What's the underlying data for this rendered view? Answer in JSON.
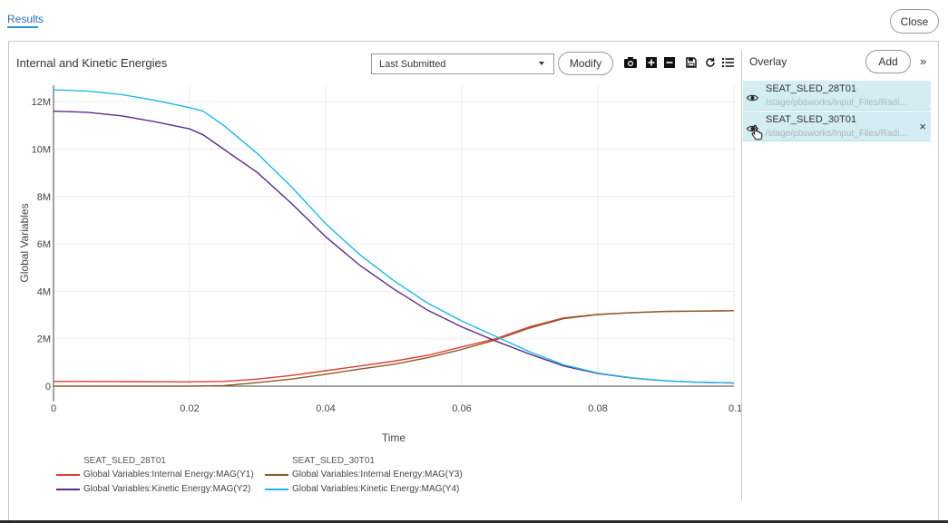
{
  "tabs": {
    "results": "Results"
  },
  "header": {
    "close_label": "Close"
  },
  "chart_header": {
    "title": "Internal and Kinetic Energies",
    "select_value": "Last Submitted",
    "modify_label": "Modify"
  },
  "toolbar": {
    "icons": [
      "camera-icon",
      "zoom-in-icon",
      "zoom-out-icon",
      "save-icon",
      "reset-icon",
      "list-icon"
    ]
  },
  "overlay": {
    "label": "Overlay",
    "add_label": "Add",
    "expand_label": "»",
    "items": [
      {
        "name": "SEAT_SLED_28T01",
        "path": "/stage/pbsworks/Input_Files/Radi..."
      },
      {
        "name": "SEAT_SLED_30T01",
        "path": "/stage/pbsworks/Input_Files/Radi...",
        "remove_label": "×"
      }
    ]
  },
  "chart_data": {
    "type": "line",
    "xlabel": "Time",
    "ylabel": "Global Variables",
    "xlim": [
      0,
      0.1
    ],
    "ylim": [
      0,
      13000000
    ],
    "x_ticks": [
      {
        "v": 0,
        "label": "0"
      },
      {
        "v": 0.02,
        "label": "0.02"
      },
      {
        "v": 0.04,
        "label": "0.04"
      },
      {
        "v": 0.06,
        "label": "0.06"
      },
      {
        "v": 0.08,
        "label": "0.08"
      },
      {
        "v": 0.1,
        "label": "0.1"
      }
    ],
    "y_ticks": [
      {
        "v": 0,
        "label": "0"
      },
      {
        "v": 2000000,
        "label": "2M"
      },
      {
        "v": 4000000,
        "label": "4M"
      },
      {
        "v": 6000000,
        "label": "6M"
      },
      {
        "v": 8000000,
        "label": "8M"
      },
      {
        "v": 10000000,
        "label": "10M"
      },
      {
        "v": 12000000,
        "label": "12M"
      }
    ],
    "grid": true,
    "legend_groups": [
      {
        "title": "SEAT_SLED_28T01",
        "series_indices": [
          0,
          1
        ]
      },
      {
        "title": "SEAT_SLED_30T01",
        "series_indices": [
          2,
          3
        ]
      }
    ],
    "series": [
      {
        "name": "Global Variables:Internal Energy:MAG(Y1)",
        "color": "#e03c31",
        "x": [
          0,
          0.01,
          0.02,
          0.025,
          0.03,
          0.035,
          0.04,
          0.045,
          0.05,
          0.055,
          0.06,
          0.065,
          0.07,
          0.075,
          0.08,
          0.085,
          0.09,
          0.1
        ],
        "y": [
          200000,
          190000,
          180000,
          200000,
          300000,
          450000,
          650000,
          850000,
          1050000,
          1300000,
          1650000,
          2000000,
          2500000,
          2880000,
          3030000,
          3100000,
          3150000,
          3180000
        ]
      },
      {
        "name": "Global Variables:Kinetic Energy:MAG(Y2)",
        "color": "#5b2a8c",
        "x": [
          0,
          0.005,
          0.01,
          0.015,
          0.02,
          0.022,
          0.025,
          0.03,
          0.035,
          0.04,
          0.045,
          0.05,
          0.055,
          0.06,
          0.065,
          0.07,
          0.075,
          0.08,
          0.085,
          0.09,
          0.095,
          0.1
        ],
        "y": [
          11600000,
          11550000,
          11400000,
          11150000,
          10850000,
          10600000,
          10000000,
          9000000,
          7700000,
          6300000,
          5100000,
          4100000,
          3200000,
          2500000,
          1900000,
          1350000,
          850000,
          530000,
          340000,
          220000,
          160000,
          130000
        ]
      },
      {
        "name": "Global Variables:Internal Energy:MAG(Y3)",
        "color": "#8b5a2b",
        "x": [
          0,
          0.01,
          0.02,
          0.025,
          0.03,
          0.035,
          0.04,
          0.045,
          0.05,
          0.055,
          0.06,
          0.065,
          0.07,
          0.075,
          0.08,
          0.085,
          0.09,
          0.1
        ],
        "y": [
          0,
          0,
          0,
          20000,
          150000,
          300000,
          500000,
          720000,
          920000,
          1200000,
          1550000,
          1950000,
          2450000,
          2850000,
          3020000,
          3100000,
          3150000,
          3180000
        ]
      },
      {
        "name": "Global Variables:Kinetic Energy:MAG(Y4)",
        "color": "#1fb8e8",
        "x": [
          0,
          0.005,
          0.01,
          0.015,
          0.02,
          0.022,
          0.025,
          0.03,
          0.035,
          0.04,
          0.045,
          0.05,
          0.055,
          0.06,
          0.065,
          0.07,
          0.075,
          0.08,
          0.085,
          0.09,
          0.095,
          0.1
        ],
        "y": [
          12500000,
          12450000,
          12300000,
          12050000,
          11750000,
          11600000,
          11000000,
          9800000,
          8400000,
          6850000,
          5550000,
          4450000,
          3500000,
          2750000,
          2100000,
          1450000,
          900000,
          550000,
          350000,
          220000,
          160000,
          130000
        ]
      }
    ]
  }
}
